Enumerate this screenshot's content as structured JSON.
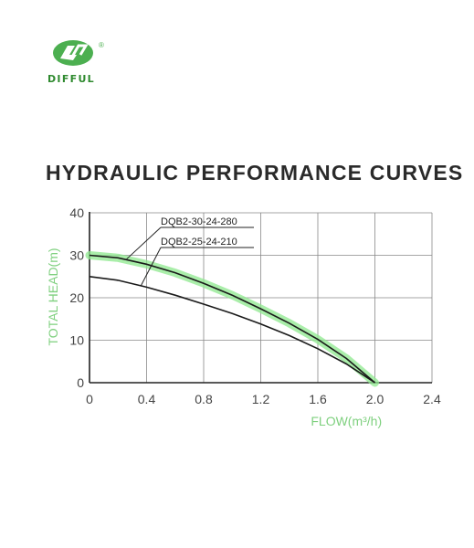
{
  "brand": {
    "name": "DIFFUL",
    "mark": "®",
    "green": "#4caf50"
  },
  "title": "HYDRAULIC PERFORMANCE CURVES",
  "chart_data": {
    "type": "line",
    "xlabel": "FLOW(m³/h)",
    "ylabel": "TOTAL HEAD(m)",
    "xlim": [
      0,
      2.4
    ],
    "ylim": [
      0,
      40
    ],
    "xticks": [
      "0",
      "0.4",
      "0.8",
      "1.2",
      "1.6",
      "2.0",
      "2.4"
    ],
    "yticks": [
      "0",
      "10",
      "20",
      "30",
      "40"
    ],
    "grid": true,
    "series": [
      {
        "name": "DQB2-30-24-280",
        "color": "#1a1a1a",
        "highlight": "#8ee88e",
        "x": [
          0,
          0.2,
          0.4,
          0.6,
          0.8,
          1.0,
          1.2,
          1.4,
          1.6,
          1.8,
          2.0
        ],
        "y": [
          30,
          29.4,
          27.9,
          25.9,
          23.4,
          20.6,
          17.4,
          14,
          10.2,
          5.7,
          0
        ]
      },
      {
        "name": "DQB2-25-24-210",
        "color": "#1a1a1a",
        "x": [
          0,
          0.2,
          0.4,
          0.6,
          0.8,
          1.0,
          1.2,
          1.4,
          1.6,
          1.8,
          2.0
        ],
        "y": [
          25,
          24.1,
          22.5,
          20.6,
          18.5,
          16.3,
          13.8,
          11.1,
          8,
          4.4,
          0
        ]
      }
    ]
  }
}
